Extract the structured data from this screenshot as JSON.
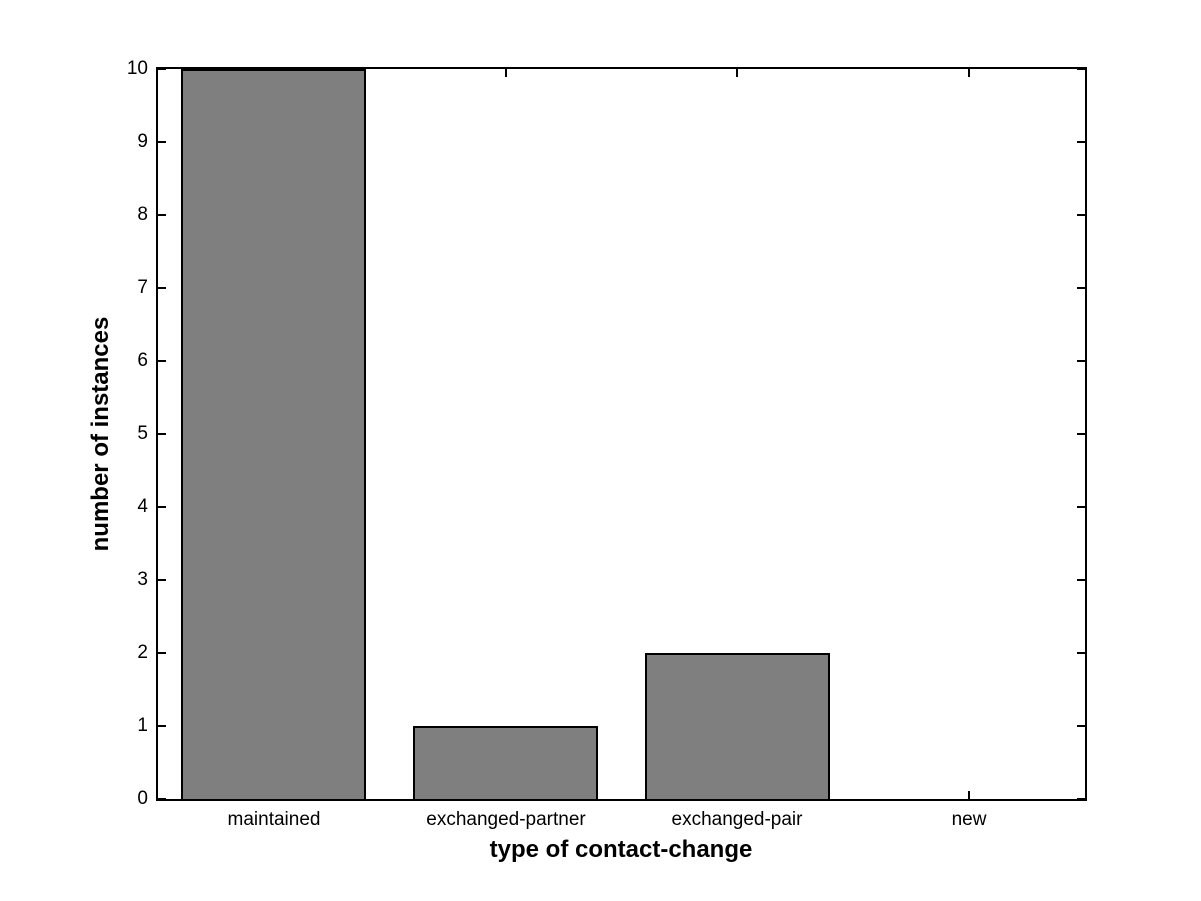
{
  "chart_data": {
    "type": "bar",
    "title": "",
    "categories": [
      "maintained",
      "exchanged-partner",
      "exchanged-pair",
      "new"
    ],
    "values": [
      10,
      1,
      2,
      0
    ],
    "xlabel": "type of contact-change",
    "ylabel": "number of instances",
    "ylim": [
      0,
      10
    ],
    "yticks": [
      0,
      1,
      2,
      3,
      4,
      5,
      6,
      7,
      8,
      9,
      10
    ],
    "ytick_labels": [
      "0",
      "1",
      "2",
      "3",
      "4",
      "5",
      "6",
      "7",
      "8",
      "9",
      "10"
    ],
    "bar_width_fraction": 0.8,
    "bar_color": "#7f7f7f",
    "bar_edge_color": "#000000",
    "axis_color": "#000000",
    "text_color": "#000000",
    "plot_background": "#ffffff",
    "figure_background": "#ffffff",
    "grid": false,
    "legend": "none",
    "tick_direction": "in"
  }
}
